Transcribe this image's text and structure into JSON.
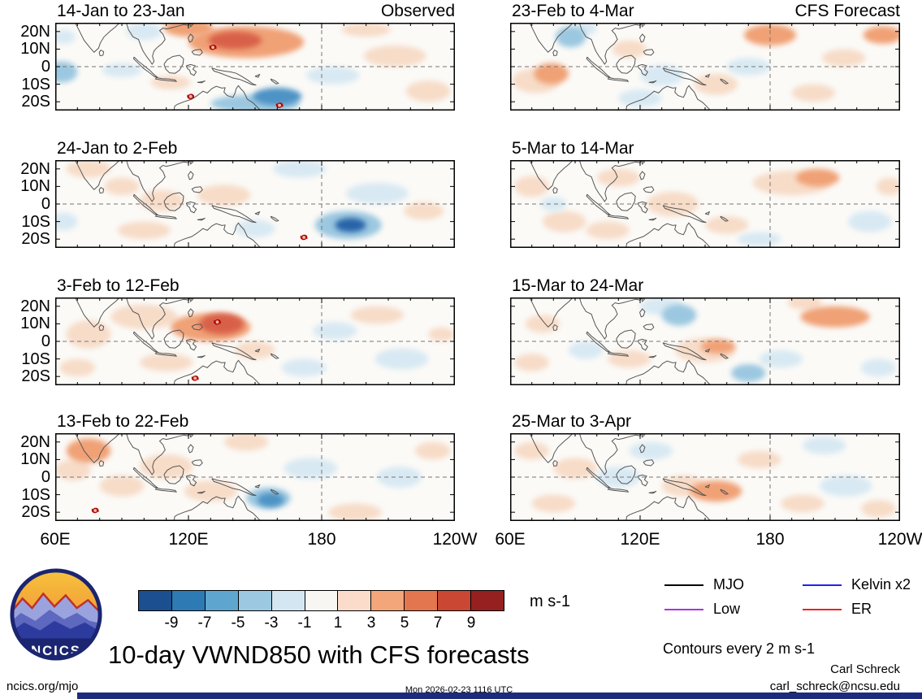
{
  "footer": {
    "logo_text": "NCICS",
    "site": "ncics.org/mjo",
    "timestamp": "Mon 2026-02-23 1116 UTC",
    "credit_name": "Carl Schreck",
    "credit_email": "carl_schreck@ncsu.edu",
    "units_label": "m s-1",
    "title": "10-day VWND850 with CFS forecasts",
    "contours_note": "Contours every 2 m s-1"
  },
  "chart_data": {
    "type": "heatmap",
    "title": "10-day VWND850 with CFS forecasts",
    "variable": "VWND850 anomaly",
    "units": "m s-1",
    "contour_interval": 2,
    "x_axis": {
      "ticks": [
        "60E",
        "120E",
        "180",
        "120W"
      ],
      "lon_range": [
        60,
        240
      ]
    },
    "y_axis": {
      "ticks": [
        "20N",
        "10N",
        "0",
        "10S",
        "20S"
      ],
      "lat_range": [
        -25,
        25
      ]
    },
    "colorbar": {
      "tick_labels": [
        "-9",
        "-7",
        "-5",
        "-3",
        "-1",
        "1",
        "3",
        "5",
        "7",
        "9"
      ],
      "colors": [
        "#1c4f8f",
        "#2e7ab5",
        "#5ea6cf",
        "#9cc8e2",
        "#d3e6f2",
        "#f8f6f2",
        "#fbdccb",
        "#f2a679",
        "#e3764f",
        "#c94733",
        "#96201f"
      ],
      "units": "m s-1"
    },
    "legend": {
      "items": [
        {
          "label": "MJO",
          "color": "#000000"
        },
        {
          "label": "Kelvin x2",
          "color": "#2222ee"
        },
        {
          "label": "Low",
          "color": "#b030e0"
        },
        {
          "label": "ER",
          "color": "#ee2222"
        }
      ]
    },
    "level_scale_note": "level n ~ anomaly in (2n-1)..(2n+1) m s-1 color class",
    "panels": [
      {
        "id": "obs-1",
        "column": "left",
        "title": "14-Jan to 23-Jan",
        "corner_label": "Observed",
        "anomalies": [
          {
            "lon": 146,
            "lat": 14,
            "rlon": 26,
            "rlat": 9,
            "level": 2
          },
          {
            "lon": 141,
            "lat": 15,
            "rlon": 12,
            "rlat": 5,
            "level": 3
          },
          {
            "lon": 120,
            "lat": 22,
            "rlon": 11,
            "rlat": 5,
            "level": 2
          },
          {
            "lon": 100,
            "lat": 20,
            "rlon": 8,
            "rlat": 5,
            "level": -1
          },
          {
            "lon": 63,
            "lat": -3,
            "rlon": 7,
            "rlat": 6,
            "level": -2
          },
          {
            "lon": 64,
            "lat": 17,
            "rlon": 5,
            "rlat": 4,
            "level": -1
          },
          {
            "lon": 90,
            "lat": -2,
            "rlon": 9,
            "rlat": 4,
            "level": -1
          },
          {
            "lon": 112,
            "lat": -9,
            "rlon": 9,
            "rlat": 4,
            "level": 1
          },
          {
            "lon": 160,
            "lat": -17,
            "rlon": 11,
            "rlat": 5,
            "level": -3
          },
          {
            "lon": 150,
            "lat": -21,
            "rlon": 20,
            "rlat": 5,
            "level": -2
          },
          {
            "lon": 185,
            "lat": -5,
            "rlon": 12,
            "rlat": 5,
            "level": -1
          },
          {
            "lon": 213,
            "lat": 6,
            "rlon": 14,
            "rlat": 6,
            "level": 1
          },
          {
            "lon": 228,
            "lat": -14,
            "rlon": 10,
            "rlat": 6,
            "level": 1
          },
          {
            "lon": 200,
            "lat": 21,
            "rlon": 11,
            "rlat": 4,
            "level": 1
          }
        ],
        "cyclones": [
          {
            "lon": 131,
            "lat": 11
          },
          {
            "lon": 121,
            "lat": -17
          },
          {
            "lon": 161,
            "lat": -22
          }
        ]
      },
      {
        "id": "obs-2",
        "column": "left",
        "title": "24-Jan to 2-Feb",
        "anomalies": [
          {
            "lon": 75,
            "lat": 20,
            "rlon": 10,
            "rlat": 5,
            "level": 1
          },
          {
            "lon": 90,
            "lat": 10,
            "rlon": 8,
            "rlat": 5,
            "level": 1
          },
          {
            "lon": 108,
            "lat": 2,
            "rlon": 10,
            "rlat": 6,
            "level": 1
          },
          {
            "lon": 136,
            "lat": 5,
            "rlon": 12,
            "rlat": 6,
            "level": 1
          },
          {
            "lon": 64,
            "lat": -10,
            "rlon": 6,
            "rlat": 5,
            "level": -1
          },
          {
            "lon": 100,
            "lat": -15,
            "rlon": 12,
            "rlat": 5,
            "level": 1
          },
          {
            "lon": 150,
            "lat": -14,
            "rlon": 9,
            "rlat": 5,
            "level": -1
          },
          {
            "lon": 192,
            "lat": -12,
            "rlon": 15,
            "rlat": 8,
            "level": -2
          },
          {
            "lon": 193,
            "lat": -12,
            "rlon": 7,
            "rlat": 4,
            "level": -4
          },
          {
            "lon": 205,
            "lat": 6,
            "rlon": 14,
            "rlat": 6,
            "level": -1
          },
          {
            "lon": 226,
            "lat": -4,
            "rlon": 9,
            "rlat": 5,
            "level": 1
          },
          {
            "lon": 170,
            "lat": 20,
            "rlon": 12,
            "rlat": 5,
            "level": -1
          }
        ],
        "cyclones": [
          {
            "lon": 172,
            "lat": -19
          }
        ]
      },
      {
        "id": "obs-3",
        "column": "left",
        "title": "3-Feb to 12-Feb",
        "anomalies": [
          {
            "lon": 135,
            "lat": 10,
            "rlon": 10,
            "rlat": 6,
            "level": 3
          },
          {
            "lon": 130,
            "lat": 8,
            "rlon": 18,
            "rlat": 8,
            "level": 2
          },
          {
            "lon": 100,
            "lat": 14,
            "rlon": 15,
            "rlat": 7,
            "level": 1
          },
          {
            "lon": 75,
            "lat": 4,
            "rlon": 10,
            "rlat": 8,
            "level": 1
          },
          {
            "lon": 70,
            "lat": -15,
            "rlon": 8,
            "rlat": 5,
            "level": 1
          },
          {
            "lon": 110,
            "lat": -12,
            "rlon": 12,
            "rlat": 5,
            "level": 1
          },
          {
            "lon": 150,
            "lat": -5,
            "rlon": 9,
            "rlat": 5,
            "level": 1
          },
          {
            "lon": 172,
            "lat": -15,
            "rlon": 10,
            "rlat": 5,
            "level": -1
          },
          {
            "lon": 186,
            "lat": 6,
            "rlon": 10,
            "rlat": 5,
            "level": -1
          },
          {
            "lon": 205,
            "lat": 15,
            "rlon": 12,
            "rlat": 5,
            "level": 1
          },
          {
            "lon": 216,
            "lat": -10,
            "rlon": 12,
            "rlat": 6,
            "level": -1
          },
          {
            "lon": 234,
            "lat": 4,
            "rlon": 6,
            "rlat": 4,
            "level": 1
          }
        ],
        "cyclones": [
          {
            "lon": 133,
            "lat": 11
          },
          {
            "lon": 123,
            "lat": -21
          }
        ]
      },
      {
        "id": "obs-4",
        "column": "left",
        "title": "13-Feb to 22-Feb",
        "anomalies": [
          {
            "lon": 75,
            "lat": 15,
            "rlon": 10,
            "rlat": 7,
            "level": 2
          },
          {
            "lon": 68,
            "lat": 4,
            "rlon": 8,
            "rlat": 6,
            "level": 1
          },
          {
            "lon": 90,
            "lat": -5,
            "rlon": 10,
            "rlat": 6,
            "level": 1
          },
          {
            "lon": 110,
            "lat": 6,
            "rlon": 12,
            "rlat": 7,
            "level": 1
          },
          {
            "lon": 130,
            "lat": -8,
            "rlon": 12,
            "rlat": 6,
            "level": 1
          },
          {
            "lon": 157,
            "lat": -13,
            "rlon": 6,
            "rlat": 4,
            "level": -3
          },
          {
            "lon": 156,
            "lat": -12,
            "rlon": 10,
            "rlat": 6,
            "level": -2
          },
          {
            "lon": 175,
            "lat": 5,
            "rlon": 12,
            "rlat": 6,
            "level": -1
          },
          {
            "lon": 195,
            "lat": -20,
            "rlon": 12,
            "rlat": 5,
            "level": 1
          },
          {
            "lon": 215,
            "lat": 0,
            "rlon": 10,
            "rlat": 6,
            "level": -1
          },
          {
            "lon": 230,
            "lat": 15,
            "rlon": 8,
            "rlat": 5,
            "level": 1
          },
          {
            "lon": 146,
            "lat": 20,
            "rlon": 10,
            "rlat": 5,
            "level": 1
          }
        ],
        "cyclones": [
          {
            "lon": 78,
            "lat": -19
          }
        ]
      },
      {
        "id": "fcst-1",
        "column": "right",
        "title": "23-Feb to 4-Mar",
        "corner_label": "CFS Forecast",
        "anomalies": [
          {
            "lon": 88,
            "lat": 17,
            "rlon": 7,
            "rlat": 6,
            "level": -2
          },
          {
            "lon": 95,
            "lat": 22,
            "rlon": 5,
            "rlat": 4,
            "level": -1
          },
          {
            "lon": 79,
            "lat": -4,
            "rlon": 8,
            "rlat": 6,
            "level": 2
          },
          {
            "lon": 72,
            "lat": -8,
            "rlon": 11,
            "rlat": 7,
            "level": 1
          },
          {
            "lon": 115,
            "lat": 10,
            "rlon": 8,
            "rlat": 5,
            "level": 1
          },
          {
            "lon": 130,
            "lat": -5,
            "rlon": 10,
            "rlat": 6,
            "level": -1
          },
          {
            "lon": 120,
            "lat": -18,
            "rlon": 10,
            "rlat": 5,
            "level": -1
          },
          {
            "lon": 155,
            "lat": -10,
            "rlon": 10,
            "rlat": 6,
            "level": 1
          },
          {
            "lon": 180,
            "lat": 18,
            "rlon": 12,
            "rlat": 6,
            "level": 2
          },
          {
            "lon": 170,
            "lat": 0,
            "rlon": 10,
            "rlat": 5,
            "level": -1
          },
          {
            "lon": 200,
            "lat": -15,
            "rlon": 10,
            "rlat": 5,
            "level": 1
          },
          {
            "lon": 214,
            "lat": 5,
            "rlon": 10,
            "rlat": 5,
            "level": 1
          },
          {
            "lon": 232,
            "lat": 18,
            "rlon": 9,
            "rlat": 5,
            "level": 2
          }
        ],
        "cyclones": []
      },
      {
        "id": "fcst-2",
        "column": "right",
        "title": "5-Mar to 14-Mar",
        "anomalies": [
          {
            "lon": 70,
            "lat": 10,
            "rlon": 8,
            "rlat": 6,
            "level": 1
          },
          {
            "lon": 85,
            "lat": -10,
            "rlon": 10,
            "rlat": 6,
            "level": 1
          },
          {
            "lon": 80,
            "lat": 0,
            "rlon": 6,
            "rlat": 4,
            "level": -1
          },
          {
            "lon": 110,
            "lat": 15,
            "rlon": 10,
            "rlat": 5,
            "level": 1
          },
          {
            "lon": 105,
            "lat": -15,
            "rlon": 10,
            "rlat": 5,
            "level": 1
          },
          {
            "lon": 135,
            "lat": 0,
            "rlon": 12,
            "rlat": 7,
            "level": 1
          },
          {
            "lon": 160,
            "lat": -12,
            "rlon": 10,
            "rlat": 5,
            "level": 1
          },
          {
            "lon": 190,
            "lat": 12,
            "rlon": 18,
            "rlat": 7,
            "level": 1
          },
          {
            "lon": 202,
            "lat": 15,
            "rlon": 10,
            "rlat": 5,
            "level": 2
          },
          {
            "lon": 175,
            "lat": -20,
            "rlon": 10,
            "rlat": 4,
            "level": -1
          },
          {
            "lon": 226,
            "lat": -10,
            "rlon": 10,
            "rlat": 6,
            "level": -1
          },
          {
            "lon": 235,
            "lat": 10,
            "rlon": 6,
            "rlat": 5,
            "level": 1
          }
        ],
        "cyclones": []
      },
      {
        "id": "fcst-3",
        "column": "right",
        "title": "15-Mar to 24-Mar",
        "anomalies": [
          {
            "lon": 138,
            "lat": 15,
            "rlon": 8,
            "rlat": 6,
            "level": -2
          },
          {
            "lon": 130,
            "lat": 20,
            "rlon": 10,
            "rlat": 5,
            "level": -1
          },
          {
            "lon": 75,
            "lat": 10,
            "rlon": 8,
            "rlat": 5,
            "level": 1
          },
          {
            "lon": 70,
            "lat": -12,
            "rlon": 8,
            "rlat": 5,
            "level": 1
          },
          {
            "lon": 95,
            "lat": -5,
            "rlon": 8,
            "rlat": 5,
            "level": -1
          },
          {
            "lon": 115,
            "lat": -10,
            "rlon": 10,
            "rlat": 5,
            "level": 1
          },
          {
            "lon": 150,
            "lat": -5,
            "rlon": 14,
            "rlat": 7,
            "level": 1
          },
          {
            "lon": 156,
            "lat": -3,
            "rlon": 8,
            "rlat": 4,
            "level": 2
          },
          {
            "lon": 170,
            "lat": -18,
            "rlon": 8,
            "rlat": 5,
            "level": -2
          },
          {
            "lon": 185,
            "lat": -10,
            "rlon": 10,
            "rlat": 5,
            "level": -1
          },
          {
            "lon": 210,
            "lat": 14,
            "rlon": 16,
            "rlat": 6,
            "level": 2
          },
          {
            "lon": 230,
            "lat": -15,
            "rlon": 8,
            "rlat": 5,
            "level": -1
          },
          {
            "lon": 196,
            "lat": 22,
            "rlon": 8,
            "rlat": 4,
            "level": 1
          }
        ],
        "cyclones": []
      },
      {
        "id": "fcst-4",
        "column": "right",
        "title": "25-Mar to 3-Apr",
        "anomalies": [
          {
            "lon": 70,
            "lat": 15,
            "rlon": 8,
            "rlat": 5,
            "level": 1
          },
          {
            "lon": 90,
            "lat": 5,
            "rlon": 10,
            "rlat": 6,
            "level": 1
          },
          {
            "lon": 80,
            "lat": -15,
            "rlon": 10,
            "rlat": 5,
            "level": 1
          },
          {
            "lon": 110,
            "lat": 0,
            "rlon": 10,
            "rlat": 6,
            "level": -1
          },
          {
            "lon": 125,
            "lat": 15,
            "rlon": 10,
            "rlat": 5,
            "level": -1
          },
          {
            "lon": 140,
            "lat": -5,
            "rlon": 10,
            "rlat": 6,
            "level": 1
          },
          {
            "lon": 155,
            "lat": -8,
            "rlon": 12,
            "rlat": 6,
            "level": 2
          },
          {
            "lon": 175,
            "lat": 10,
            "rlon": 10,
            "rlat": 5,
            "level": 1
          },
          {
            "lon": 195,
            "lat": -15,
            "rlon": 10,
            "rlat": 5,
            "level": 1
          },
          {
            "lon": 215,
            "lat": -5,
            "rlon": 12,
            "rlat": 6,
            "level": -1
          },
          {
            "lon": 230,
            "lat": -18,
            "rlon": 8,
            "rlat": 5,
            "level": 1
          },
          {
            "lon": 205,
            "lat": 18,
            "rlon": 10,
            "rlat": 5,
            "level": -1
          }
        ],
        "cyclones": []
      }
    ]
  }
}
